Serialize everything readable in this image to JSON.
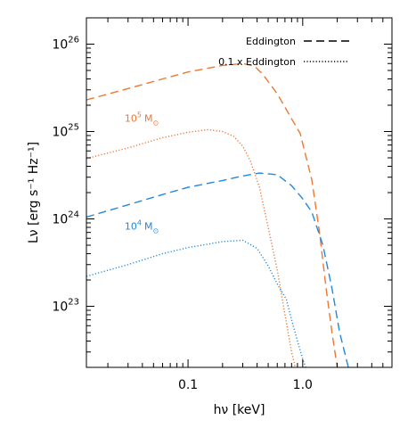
{
  "chart_data": {
    "type": "line",
    "xlabel": "hν [keV]",
    "ylabel": "Lν [erg s⁻¹ Hz⁻¹]",
    "xscale": "log",
    "yscale": "log",
    "xlim": [
      0.013,
      6.0
    ],
    "ylim": [
      2e+22,
      2e+26
    ],
    "grid": false,
    "legend_position": "top-right",
    "x_ticks": [
      {
        "value": 0.1,
        "label": "0.1"
      },
      {
        "value": 1.0,
        "label": "1.0"
      }
    ],
    "y_ticks": [
      {
        "value": 1e+23,
        "base": "10",
        "exp": "23"
      },
      {
        "value": 1e+24,
        "base": "10",
        "exp": "24"
      },
      {
        "value": 1e+25,
        "base": "10",
        "exp": "25"
      },
      {
        "value": 1e+26,
        "base": "10",
        "exp": "26"
      }
    ],
    "legend": [
      {
        "label": "Eddington",
        "dash": "dashed"
      },
      {
        "label": "0.1 x Eddington",
        "dash": "dotted"
      }
    ],
    "annotations": [
      {
        "base": "10",
        "exp": "5",
        "unit": "M",
        "sub": "⊙",
        "color": "#ee7733",
        "x": 0.028,
        "y": 1.3e+25
      },
      {
        "base": "10",
        "exp": "4",
        "unit": "M",
        "sub": "⊙",
        "color": "#2288dd",
        "x": 0.028,
        "y": 7.5e+23
      }
    ],
    "series": [
      {
        "mass": "1e5",
        "accretion": "Eddington",
        "color": "#ee7733",
        "dash": "dashed",
        "points": [
          [
            0.013,
            2.3e+25
          ],
          [
            0.03,
            3.1e+25
          ],
          [
            0.06,
            4e+25
          ],
          [
            0.1,
            4.8e+25
          ],
          [
            0.2,
            5.7e+25
          ],
          [
            0.3,
            6e+25
          ],
          [
            0.38,
            5.6e+25
          ],
          [
            0.45,
            4.5e+25
          ],
          [
            0.6,
            2.7e+25
          ],
          [
            0.8,
            1.4e+25
          ],
          [
            0.95,
            9.5e+24
          ],
          [
            1.2,
            2.8e+24
          ],
          [
            1.4,
            7e+23
          ],
          [
            1.6,
            1.6e+23
          ],
          [
            1.8,
            5e+22
          ],
          [
            2.0,
            2e+22
          ]
        ]
      },
      {
        "mass": "1e5",
        "accretion": "0.1 x Eddington",
        "color": "#ee7733",
        "dash": "dotted",
        "points": [
          [
            0.013,
            4.9e+24
          ],
          [
            0.03,
            6.5e+24
          ],
          [
            0.06,
            8.5e+24
          ],
          [
            0.1,
            9.8e+24
          ],
          [
            0.15,
            1.05e+25
          ],
          [
            0.2,
            1e+25
          ],
          [
            0.25,
            8.8e+24
          ],
          [
            0.3,
            6.8e+24
          ],
          [
            0.35,
            4.6e+24
          ],
          [
            0.42,
            2.3e+24
          ],
          [
            0.5,
            8e+23
          ],
          [
            0.6,
            2.6e+23
          ],
          [
            0.7,
            8e+22
          ],
          [
            0.8,
            3e+22
          ],
          [
            0.86,
            2e+22
          ]
        ]
      },
      {
        "mass": "1e4",
        "accretion": "Eddington",
        "color": "#2288dd",
        "dash": "dashed",
        "points": [
          [
            0.013,
            1.05e+24
          ],
          [
            0.03,
            1.45e+24
          ],
          [
            0.06,
            1.9e+24
          ],
          [
            0.1,
            2.3e+24
          ],
          [
            0.2,
            2.75e+24
          ],
          [
            0.3,
            3.1e+24
          ],
          [
            0.42,
            3.35e+24
          ],
          [
            0.6,
            3.2e+24
          ],
          [
            0.8,
            2.4e+24
          ],
          [
            1.0,
            1.7e+24
          ],
          [
            1.2,
            1.2e+24
          ],
          [
            1.5,
            5e+23
          ],
          [
            1.8,
            1.6e+23
          ],
          [
            2.1,
            5e+22
          ],
          [
            2.5,
            2e+22
          ]
        ]
      },
      {
        "mass": "1e4",
        "accretion": "0.1 x Eddington",
        "color": "#2288dd",
        "dash": "dotted",
        "points": [
          [
            0.013,
            2.2e+23
          ],
          [
            0.03,
            3e+23
          ],
          [
            0.06,
            4e+23
          ],
          [
            0.1,
            4.7e+23
          ],
          [
            0.2,
            5.5e+23
          ],
          [
            0.3,
            5.7e+23
          ],
          [
            0.4,
            4.6e+23
          ],
          [
            0.5,
            2.9e+23
          ],
          [
            0.6,
            1.8e+23
          ],
          [
            0.72,
            1.2e+23
          ],
          [
            0.8,
            7e+22
          ],
          [
            0.9,
            4e+22
          ],
          [
            1.0,
            2.5e+22
          ],
          [
            1.06,
            2e+22
          ]
        ]
      }
    ]
  }
}
